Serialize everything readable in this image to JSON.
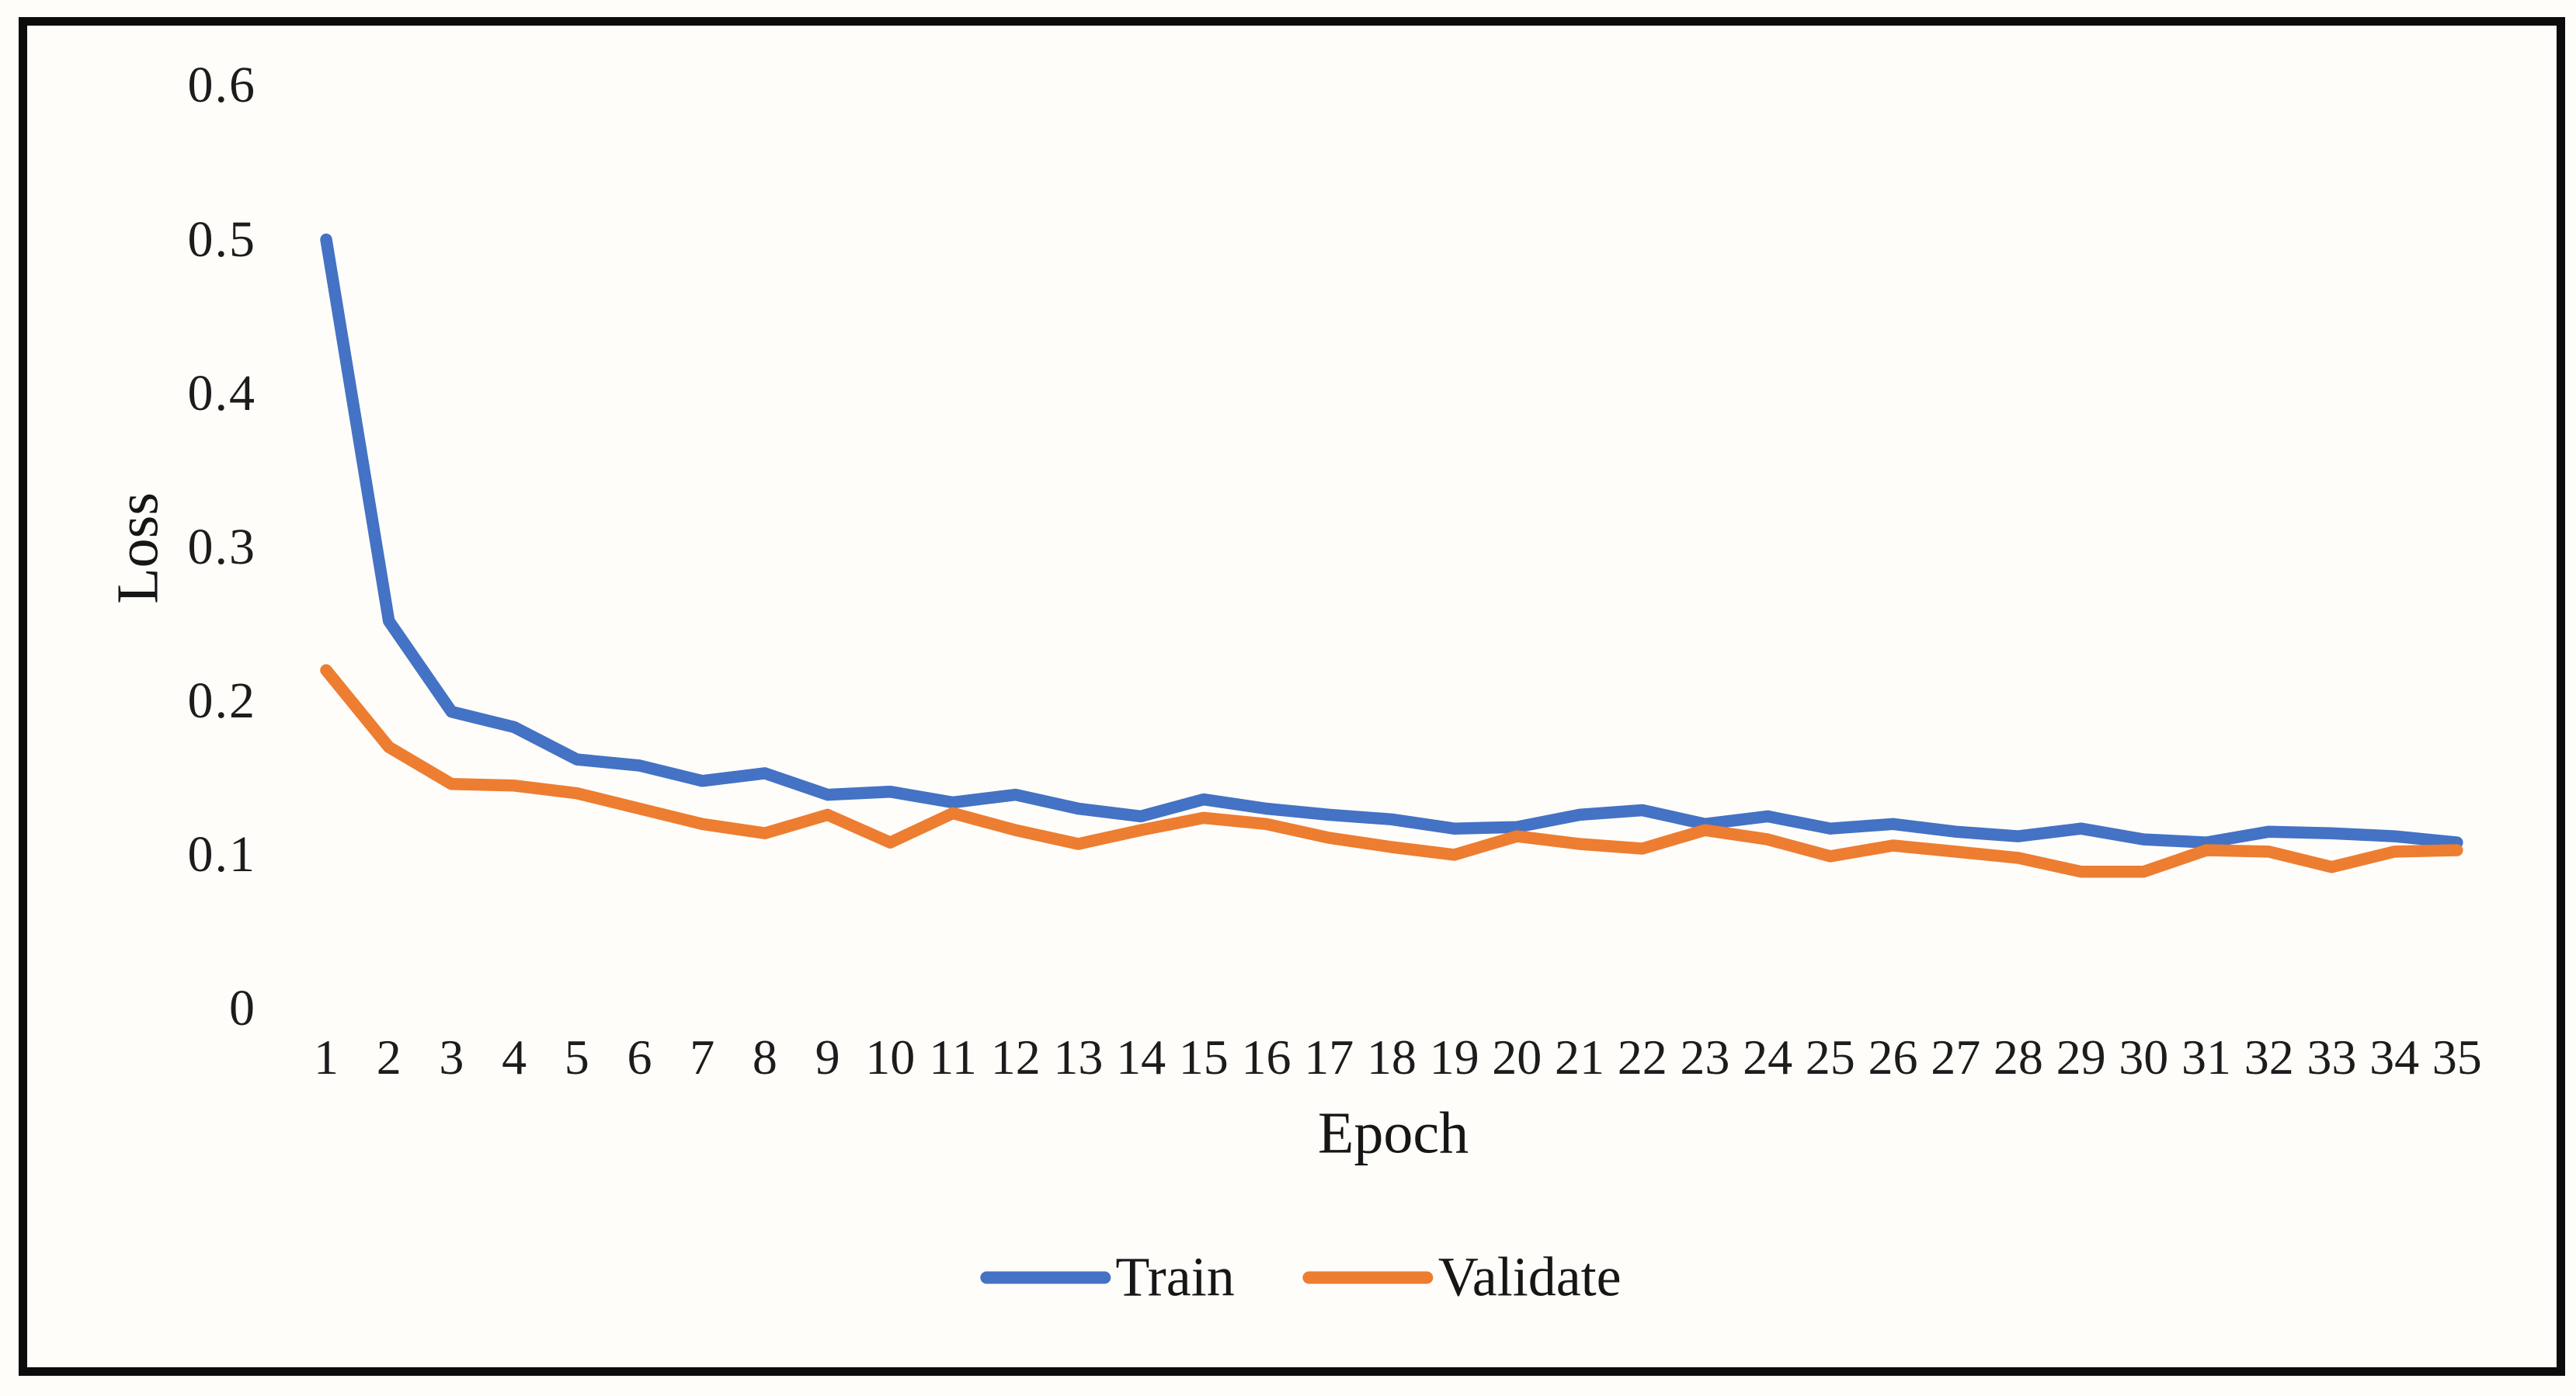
{
  "figure": {
    "background_color": "#fffdfa",
    "frame_color": "#0c0c0c",
    "axis": {
      "y_label": "Loss",
      "x_label": "Epoch",
      "y_ticks": [
        "0.6",
        "0.5",
        "0.4",
        "0.3",
        "0.2",
        "0.1",
        "0"
      ],
      "x_ticks": [
        "1",
        "2",
        "3",
        "4",
        "5",
        "6",
        "7",
        "8",
        "9",
        "10",
        "11",
        "12",
        "13",
        "14",
        "15",
        "16",
        "17",
        "18",
        "19",
        "20",
        "21",
        "22",
        "23",
        "24",
        "25",
        "26",
        "27",
        "28",
        "29",
        "30",
        "31",
        "32",
        "33",
        "34",
        "35"
      ]
    },
    "legend": [
      {
        "label": "Train",
        "color": "#4472C4"
      },
      {
        "label": "Validate",
        "color": "#ED7D31"
      }
    ]
  },
  "chart_data": {
    "type": "line",
    "title": "",
    "xlabel": "Epoch",
    "ylabel": "Loss",
    "x": [
      1,
      2,
      3,
      4,
      5,
      6,
      7,
      8,
      9,
      10,
      11,
      12,
      13,
      14,
      15,
      16,
      17,
      18,
      19,
      20,
      21,
      22,
      23,
      24,
      25,
      26,
      27,
      28,
      29,
      30,
      31,
      32,
      33,
      34,
      35
    ],
    "xlim": [
      1,
      35
    ],
    "ylim": [
      0,
      0.6
    ],
    "y_tick_step": 0.1,
    "grid": false,
    "legend_position": "bottom-center",
    "series": [
      {
        "name": "Train",
        "color": "#4472C4",
        "values": [
          0.5,
          0.252,
          0.193,
          0.183,
          0.162,
          0.158,
          0.148,
          0.153,
          0.139,
          0.141,
          0.134,
          0.139,
          0.13,
          0.125,
          0.136,
          0.13,
          0.126,
          0.123,
          0.117,
          0.118,
          0.126,
          0.129,
          0.12,
          0.125,
          0.117,
          0.12,
          0.115,
          0.112,
          0.117,
          0.11,
          0.108,
          0.115,
          0.114,
          0.112,
          0.108
        ]
      },
      {
        "name": "Validate",
        "color": "#ED7D31",
        "values": [
          0.22,
          0.17,
          0.146,
          0.145,
          0.14,
          0.13,
          0.12,
          0.114,
          0.126,
          0.108,
          0.127,
          0.116,
          0.107,
          0.116,
          0.124,
          0.12,
          0.111,
          0.105,
          0.1,
          0.112,
          0.107,
          0.104,
          0.116,
          0.11,
          0.099,
          0.106,
          0.102,
          0.098,
          0.089,
          0.089,
          0.103,
          0.102,
          0.092,
          0.102,
          0.103
        ]
      }
    ]
  }
}
